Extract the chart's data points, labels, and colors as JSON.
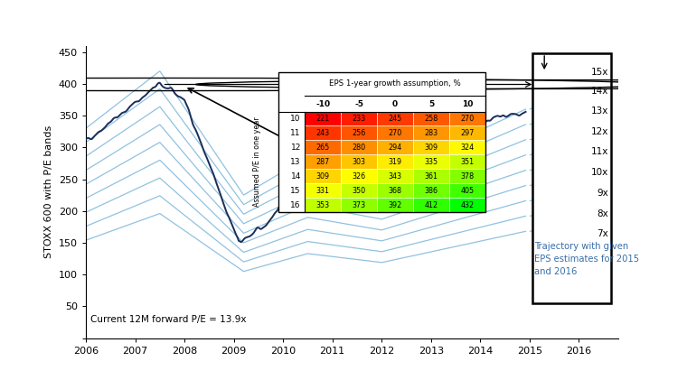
{
  "title": "",
  "ylabel": "STOXX 600 with P/E bands",
  "xlabel": "",
  "ylim": [
    0,
    460
  ],
  "xlim_start": 2006.0,
  "xlim_end": 2016.8,
  "xticks": [
    2006,
    2007,
    2008,
    2009,
    2010,
    2011,
    2012,
    2013,
    2014,
    2015,
    2016
  ],
  "yticks": [
    0,
    50,
    100,
    150,
    200,
    250,
    300,
    350,
    400,
    450
  ],
  "pe_bands": [
    7,
    8,
    9,
    10,
    11,
    12,
    13,
    14,
    15
  ],
  "current_pe_text": "Current 12M forward P/E = 13.9x",
  "table_title": "EPS 1-year growth assumption, %",
  "table_col_labels": [
    "-10",
    "-5",
    "0",
    "5",
    "10"
  ],
  "table_row_labels": [
    "10",
    "11",
    "12",
    "13",
    "14",
    "15",
    "16"
  ],
  "table_row_header": "Assumed P/E in one year",
  "table_data": [
    [
      221,
      233,
      245,
      258,
      270
    ],
    [
      243,
      256,
      270,
      283,
      297
    ],
    [
      265,
      280,
      294,
      309,
      324
    ],
    [
      287,
      303,
      319,
      335,
      351
    ],
    [
      309,
      326,
      343,
      361,
      378
    ],
    [
      331,
      350,
      368,
      386,
      405
    ],
    [
      353,
      373,
      392,
      412,
      432
    ]
  ],
  "trajectory_label": "Trajectory with given\nEPS estimates for 2015\nand 2016",
  "background_color": "#ffffff",
  "line_color": "#1a2e5a",
  "band_line_color": "#6baed6"
}
